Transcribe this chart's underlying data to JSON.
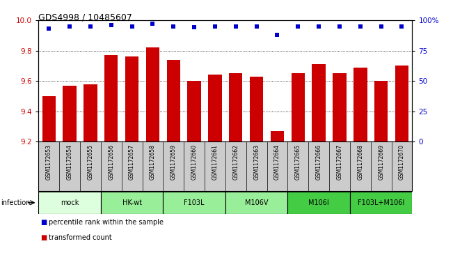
{
  "title": "GDS4998 / 10485607",
  "samples": [
    "GSM1172653",
    "GSM1172654",
    "GSM1172655",
    "GSM1172656",
    "GSM1172657",
    "GSM1172658",
    "GSM1172659",
    "GSM1172660",
    "GSM1172661",
    "GSM1172662",
    "GSM1172663",
    "GSM1172664",
    "GSM1172665",
    "GSM1172666",
    "GSM1172667",
    "GSM1172668",
    "GSM1172669",
    "GSM1172670"
  ],
  "bar_values": [
    9.5,
    9.57,
    9.58,
    9.77,
    9.76,
    9.82,
    9.74,
    9.6,
    9.64,
    9.65,
    9.63,
    9.27,
    9.65,
    9.71,
    9.65,
    9.69,
    9.6,
    9.7
  ],
  "dot_values": [
    93,
    95,
    95,
    96,
    95,
    97,
    95,
    94,
    95,
    95,
    95,
    88,
    95,
    95,
    95,
    95,
    95,
    95
  ],
  "ylim_left": [
    9.2,
    10.0
  ],
  "ylim_right": [
    0,
    100
  ],
  "yticks_left": [
    9.2,
    9.4,
    9.6,
    9.8,
    10.0
  ],
  "yticks_right": [
    0,
    25,
    50,
    75,
    100
  ],
  "ytick_labels_right": [
    "0",
    "25",
    "50",
    "75",
    "100%"
  ],
  "bar_color": "#cc0000",
  "dot_color": "#0000cc",
  "bar_bottom": 9.2,
  "sample_box_color": "#cccccc",
  "groups": [
    {
      "label": "mock",
      "start": 0,
      "end": 2,
      "color": "#ddffdd"
    },
    {
      "label": "HK-wt",
      "start": 3,
      "end": 5,
      "color": "#99ee99"
    },
    {
      "label": "F103L",
      "start": 6,
      "end": 8,
      "color": "#99ee99"
    },
    {
      "label": "M106V",
      "start": 9,
      "end": 11,
      "color": "#99ee99"
    },
    {
      "label": "M106I",
      "start": 12,
      "end": 14,
      "color": "#44cc44"
    },
    {
      "label": "F103L+M106I",
      "start": 15,
      "end": 17,
      "color": "#44cc44"
    }
  ],
  "infection_label": "infection",
  "legend_items": [
    {
      "color": "#cc0000",
      "label": "transformed count"
    },
    {
      "color": "#0000cc",
      "label": "percentile rank within the sample"
    }
  ]
}
